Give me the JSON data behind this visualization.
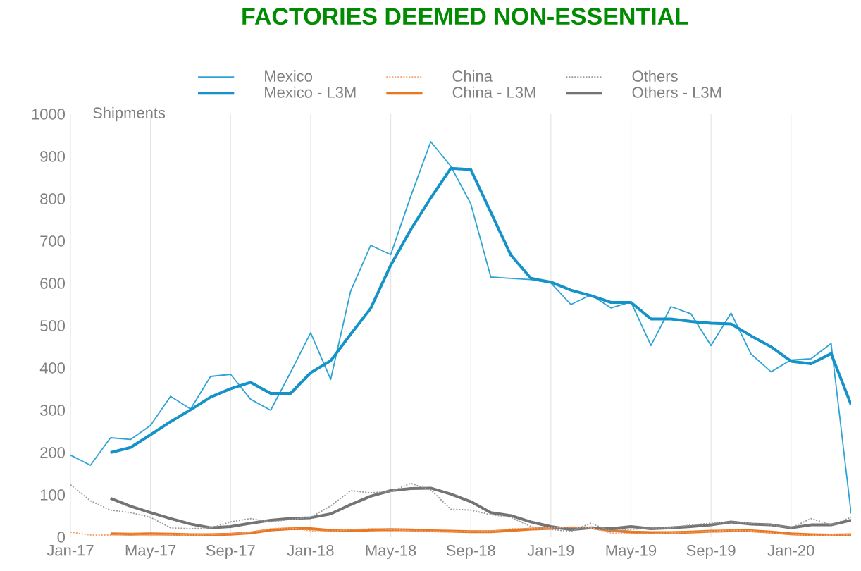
{
  "chart_data": {
    "type": "line",
    "title": "FACTORIES DEEMED NON-ESSENTIAL",
    "ylabel": "Shipments",
    "categories": [
      "Jan-17",
      null,
      null,
      null,
      "May-17",
      null,
      null,
      null,
      "Sep-17",
      null,
      null,
      null,
      "Jan-18",
      null,
      null,
      null,
      "May-18",
      null,
      null,
      null,
      "Sep-18",
      null,
      null,
      null,
      "Jan-19",
      null,
      null,
      null,
      "May-19",
      null,
      null,
      null,
      "Sep-19",
      null,
      null,
      null,
      "Jan-20",
      null,
      null,
      null
    ],
    "ylim": [
      0,
      1000
    ],
    "yticks": [
      0,
      100,
      200,
      300,
      400,
      500,
      600,
      700,
      800,
      900,
      1000
    ],
    "grid": "x",
    "legend": "top",
    "series": [
      {
        "name": "Mexico",
        "color": "#2ea3d4",
        "line_style": "solid",
        "values": [
          194,
          170,
          235,
          231,
          264,
          333,
          303,
          380,
          385,
          326,
          300,
          390,
          483,
          373,
          582,
          690,
          668,
          806,
          935,
          877,
          788,
          615,
          612,
          609,
          601,
          550,
          573,
          542,
          556,
          453,
          545,
          528,
          453,
          530,
          433,
          391,
          419,
          422,
          458,
          56
        ]
      },
      {
        "name": "China",
        "color": "#f2a477",
        "line_style": "dotted",
        "values": [
          12,
          5,
          5,
          8,
          6,
          5,
          5,
          6,
          8,
          12,
          20,
          22,
          15,
          14,
          18,
          20,
          18,
          15,
          14,
          13,
          13,
          14,
          20,
          20,
          22,
          24,
          22,
          10,
          8,
          8,
          10,
          12,
          14,
          16,
          15,
          10,
          6,
          4,
          5,
          6
        ]
      },
      {
        "name": "Others",
        "color": "#9a9a9a",
        "line_style": "dotted",
        "values": [
          124,
          86,
          64,
          58,
          47,
          22,
          20,
          22,
          36,
          44,
          36,
          42,
          47,
          74,
          110,
          105,
          108,
          127,
          112,
          66,
          64,
          53,
          47,
          25,
          18,
          14,
          33,
          14,
          18,
          22,
          22,
          29,
          33,
          36,
          33,
          29,
          22,
          44,
          29,
          47
        ]
      },
      {
        "name": "Mexico - L3M",
        "color": "#1593c8",
        "line_style": "solid",
        "values": [
          null,
          null,
          200,
          212,
          242,
          273,
          301,
          331,
          351,
          366,
          340,
          340,
          389,
          417,
          480,
          541,
          643,
          727,
          802,
          872,
          869,
          768,
          667,
          612,
          603,
          584,
          571,
          555,
          555,
          516,
          516,
          510,
          506,
          504,
          476,
          450,
          416,
          410,
          434,
          313
        ]
      },
      {
        "name": "China - L3M",
        "color": "#e87722",
        "line_style": "solid",
        "values": [
          null,
          null,
          8,
          7,
          8,
          7,
          6,
          6,
          7,
          10,
          17,
          20,
          20,
          16,
          15,
          17,
          18,
          17,
          15,
          14,
          13,
          13,
          16,
          19,
          21,
          22,
          22,
          16,
          12,
          11,
          11,
          12,
          14,
          15,
          15,
          12,
          8,
          6,
          5,
          6
        ]
      },
      {
        "name": "Others - L3M",
        "color": "#747474",
        "line_style": "solid",
        "values": [
          null,
          null,
          92,
          73,
          58,
          44,
          31,
          22,
          25,
          33,
          40,
          44,
          46,
          55,
          77,
          97,
          110,
          115,
          116,
          102,
          84,
          58,
          51,
          36,
          25,
          18,
          22,
          20,
          25,
          20,
          22,
          25,
          29,
          36,
          31,
          29,
          22,
          29,
          29,
          40
        ]
      }
    ]
  }
}
